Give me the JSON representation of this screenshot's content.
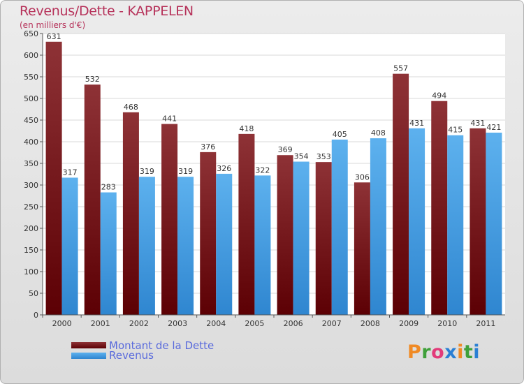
{
  "title": "Revenus/Dette - KAPPELEN",
  "subtitle": "(en milliers d'€)",
  "logo": {
    "text": "Proxiti"
  },
  "chart_data": {
    "type": "bar",
    "categories": [
      "2000",
      "2001",
      "2002",
      "2003",
      "2004",
      "2005",
      "2006",
      "2007",
      "2008",
      "2009",
      "2010",
      "2011"
    ],
    "series": [
      {
        "name": "Montant de la Dette",
        "values": [
          631,
          532,
          468,
          441,
          376,
          418,
          369,
          353,
          306,
          557,
          494,
          431
        ],
        "color": "#7a1f22"
      },
      {
        "name": "Revenus",
        "values": [
          317,
          283,
          319,
          319,
          326,
          322,
          354,
          405,
          408,
          431,
          415,
          421
        ],
        "color": "#4fa6e6"
      }
    ],
    "ylim": [
      0,
      650
    ],
    "yticks": [
      0,
      50,
      100,
      150,
      200,
      250,
      300,
      350,
      400,
      450,
      500,
      550,
      600,
      650
    ],
    "grid": true,
    "legend": "bottom-left"
  }
}
